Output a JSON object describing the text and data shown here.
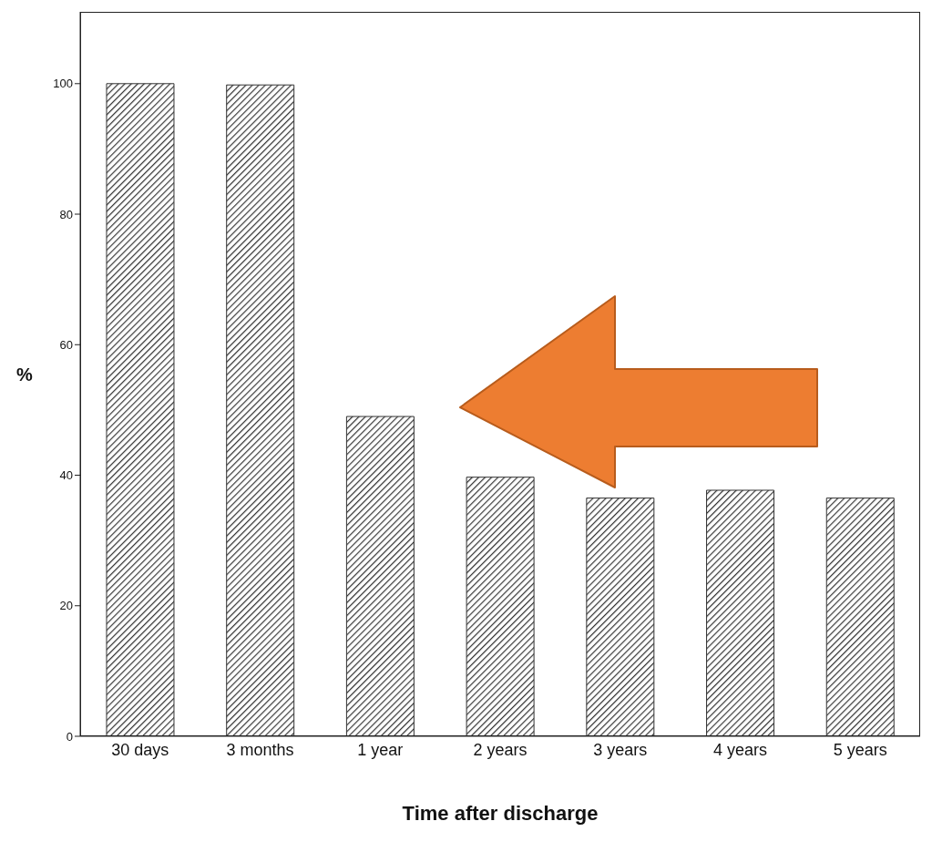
{
  "chart_data": {
    "type": "bar",
    "xlabel": "Time after discharge",
    "ylabel": "%",
    "categories": [
      "30 days",
      "3 months",
      "1 year",
      "2 years",
      "3 years",
      "4 years",
      "5 years"
    ],
    "values": [
      100,
      99.8,
      49,
      39.7,
      36.5,
      37.7,
      36.5
    ],
    "color": "#333333",
    "ylim": [
      0,
      111
    ],
    "yticks": [
      0,
      20,
      40,
      60,
      80,
      100
    ],
    "grid": false,
    "legend": false
  }
}
